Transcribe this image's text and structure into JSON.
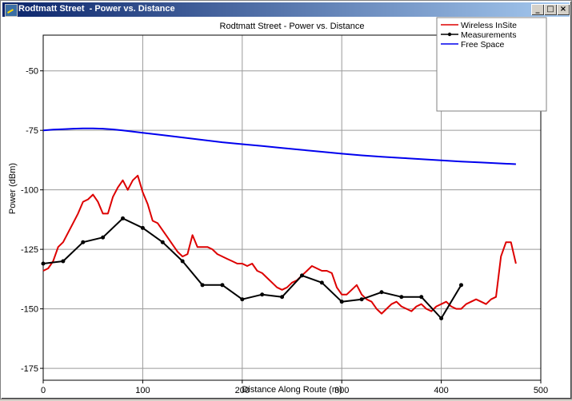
{
  "window": {
    "title": "Rodtmatt Street  - Power vs. Distance",
    "buttons": {
      "minimize": "_",
      "maximize": "□",
      "close": "×"
    }
  },
  "chart_data": {
    "type": "line",
    "title": "Rodtmatt Street  - Power vs. Distance",
    "xlabel": "Distance Along Route (m)",
    "ylabel": "Power (dBm)",
    "xlim": [
      0,
      500
    ],
    "ylim": [
      -180,
      -35
    ],
    "xticks": [
      0,
      100,
      200,
      300,
      400,
      500
    ],
    "yticks": [
      -50,
      -75,
      -100,
      -125,
      -150,
      -175
    ],
    "grid": true,
    "legend_position": "top-right",
    "series": [
      {
        "name": "Wireless InSite",
        "color": "#dd0000",
        "markers": false,
        "x": [
          0,
          5,
          10,
          15,
          20,
          25,
          30,
          35,
          40,
          45,
          50,
          55,
          60,
          65,
          70,
          75,
          80,
          85,
          90,
          95,
          100,
          105,
          110,
          115,
          120,
          125,
          130,
          135,
          140,
          145,
          150,
          155,
          160,
          165,
          170,
          175,
          180,
          185,
          190,
          195,
          200,
          205,
          210,
          215,
          220,
          225,
          230,
          235,
          240,
          245,
          250,
          255,
          260,
          265,
          270,
          275,
          280,
          285,
          290,
          295,
          300,
          305,
          310,
          315,
          320,
          325,
          330,
          335,
          340,
          345,
          350,
          355,
          360,
          365,
          370,
          375,
          380,
          385,
          390,
          395,
          400,
          405,
          410,
          415,
          420,
          425,
          430,
          435,
          440,
          445,
          450,
          455,
          460,
          465,
          470,
          475
        ],
        "y": [
          -134,
          -133,
          -130,
          -124,
          -122,
          -118,
          -114,
          -110,
          -105,
          -104,
          -102,
          -105,
          -110,
          -110,
          -103,
          -99,
          -96,
          -100,
          -96,
          -94,
          -101,
          -106,
          -113,
          -114,
          -117,
          -120,
          -123,
          -126,
          -128,
          -127,
          -119,
          -124,
          -124,
          -124,
          -125,
          -127,
          -128,
          -129,
          -130,
          -131,
          -131,
          -132,
          -131,
          -134,
          -135,
          -137,
          -139,
          -141,
          -142,
          -141,
          -139,
          -138,
          -136,
          -134,
          -132,
          -133,
          -134,
          -134,
          -135,
          -141,
          -144,
          -144,
          -142,
          -140,
          -144,
          -146,
          -147,
          -150,
          -152,
          -150,
          -148,
          -147,
          -149,
          -150,
          -151,
          -149,
          -148,
          -150,
          -151,
          -149,
          -148,
          -147,
          -149,
          -150,
          -150,
          -148,
          -147,
          -146,
          -147,
          -148,
          -146,
          -145,
          -128,
          -122,
          -122,
          -131
        ]
      },
      {
        "name": "Measurements",
        "color": "#000000",
        "markers": true,
        "x": [
          0,
          20,
          40,
          60,
          80,
          100,
          120,
          140,
          160,
          180,
          200,
          220,
          240,
          260,
          280,
          300,
          320,
          340,
          360,
          380,
          400,
          420
        ],
        "y": [
          -131,
          -130,
          -122,
          -120,
          -112,
          -116,
          -122,
          -130,
          -140,
          -140,
          -146,
          -144,
          -145,
          -136,
          -139,
          -147,
          -146,
          -143,
          -145,
          -145,
          -154,
          -140
        ]
      },
      {
        "name": "Free Space",
        "color": "#0000ee",
        "markers": false,
        "x": [
          0,
          10,
          20,
          30,
          40,
          50,
          60,
          70,
          80,
          90,
          100,
          120,
          140,
          160,
          180,
          200,
          220,
          240,
          260,
          280,
          300,
          320,
          340,
          360,
          380,
          400,
          420,
          440,
          460,
          475
        ],
        "y": [
          -75.0,
          -74.7,
          -74.5,
          -74.3,
          -74.2,
          -74.2,
          -74.3,
          -74.6,
          -75.0,
          -75.5,
          -76.0,
          -77.0,
          -78.0,
          -79.0,
          -80.0,
          -80.8,
          -81.6,
          -82.4,
          -83.2,
          -84.0,
          -84.8,
          -85.5,
          -86.1,
          -86.6,
          -87.1,
          -87.6,
          -88.1,
          -88.5,
          -88.9,
          -89.2
        ]
      }
    ]
  }
}
